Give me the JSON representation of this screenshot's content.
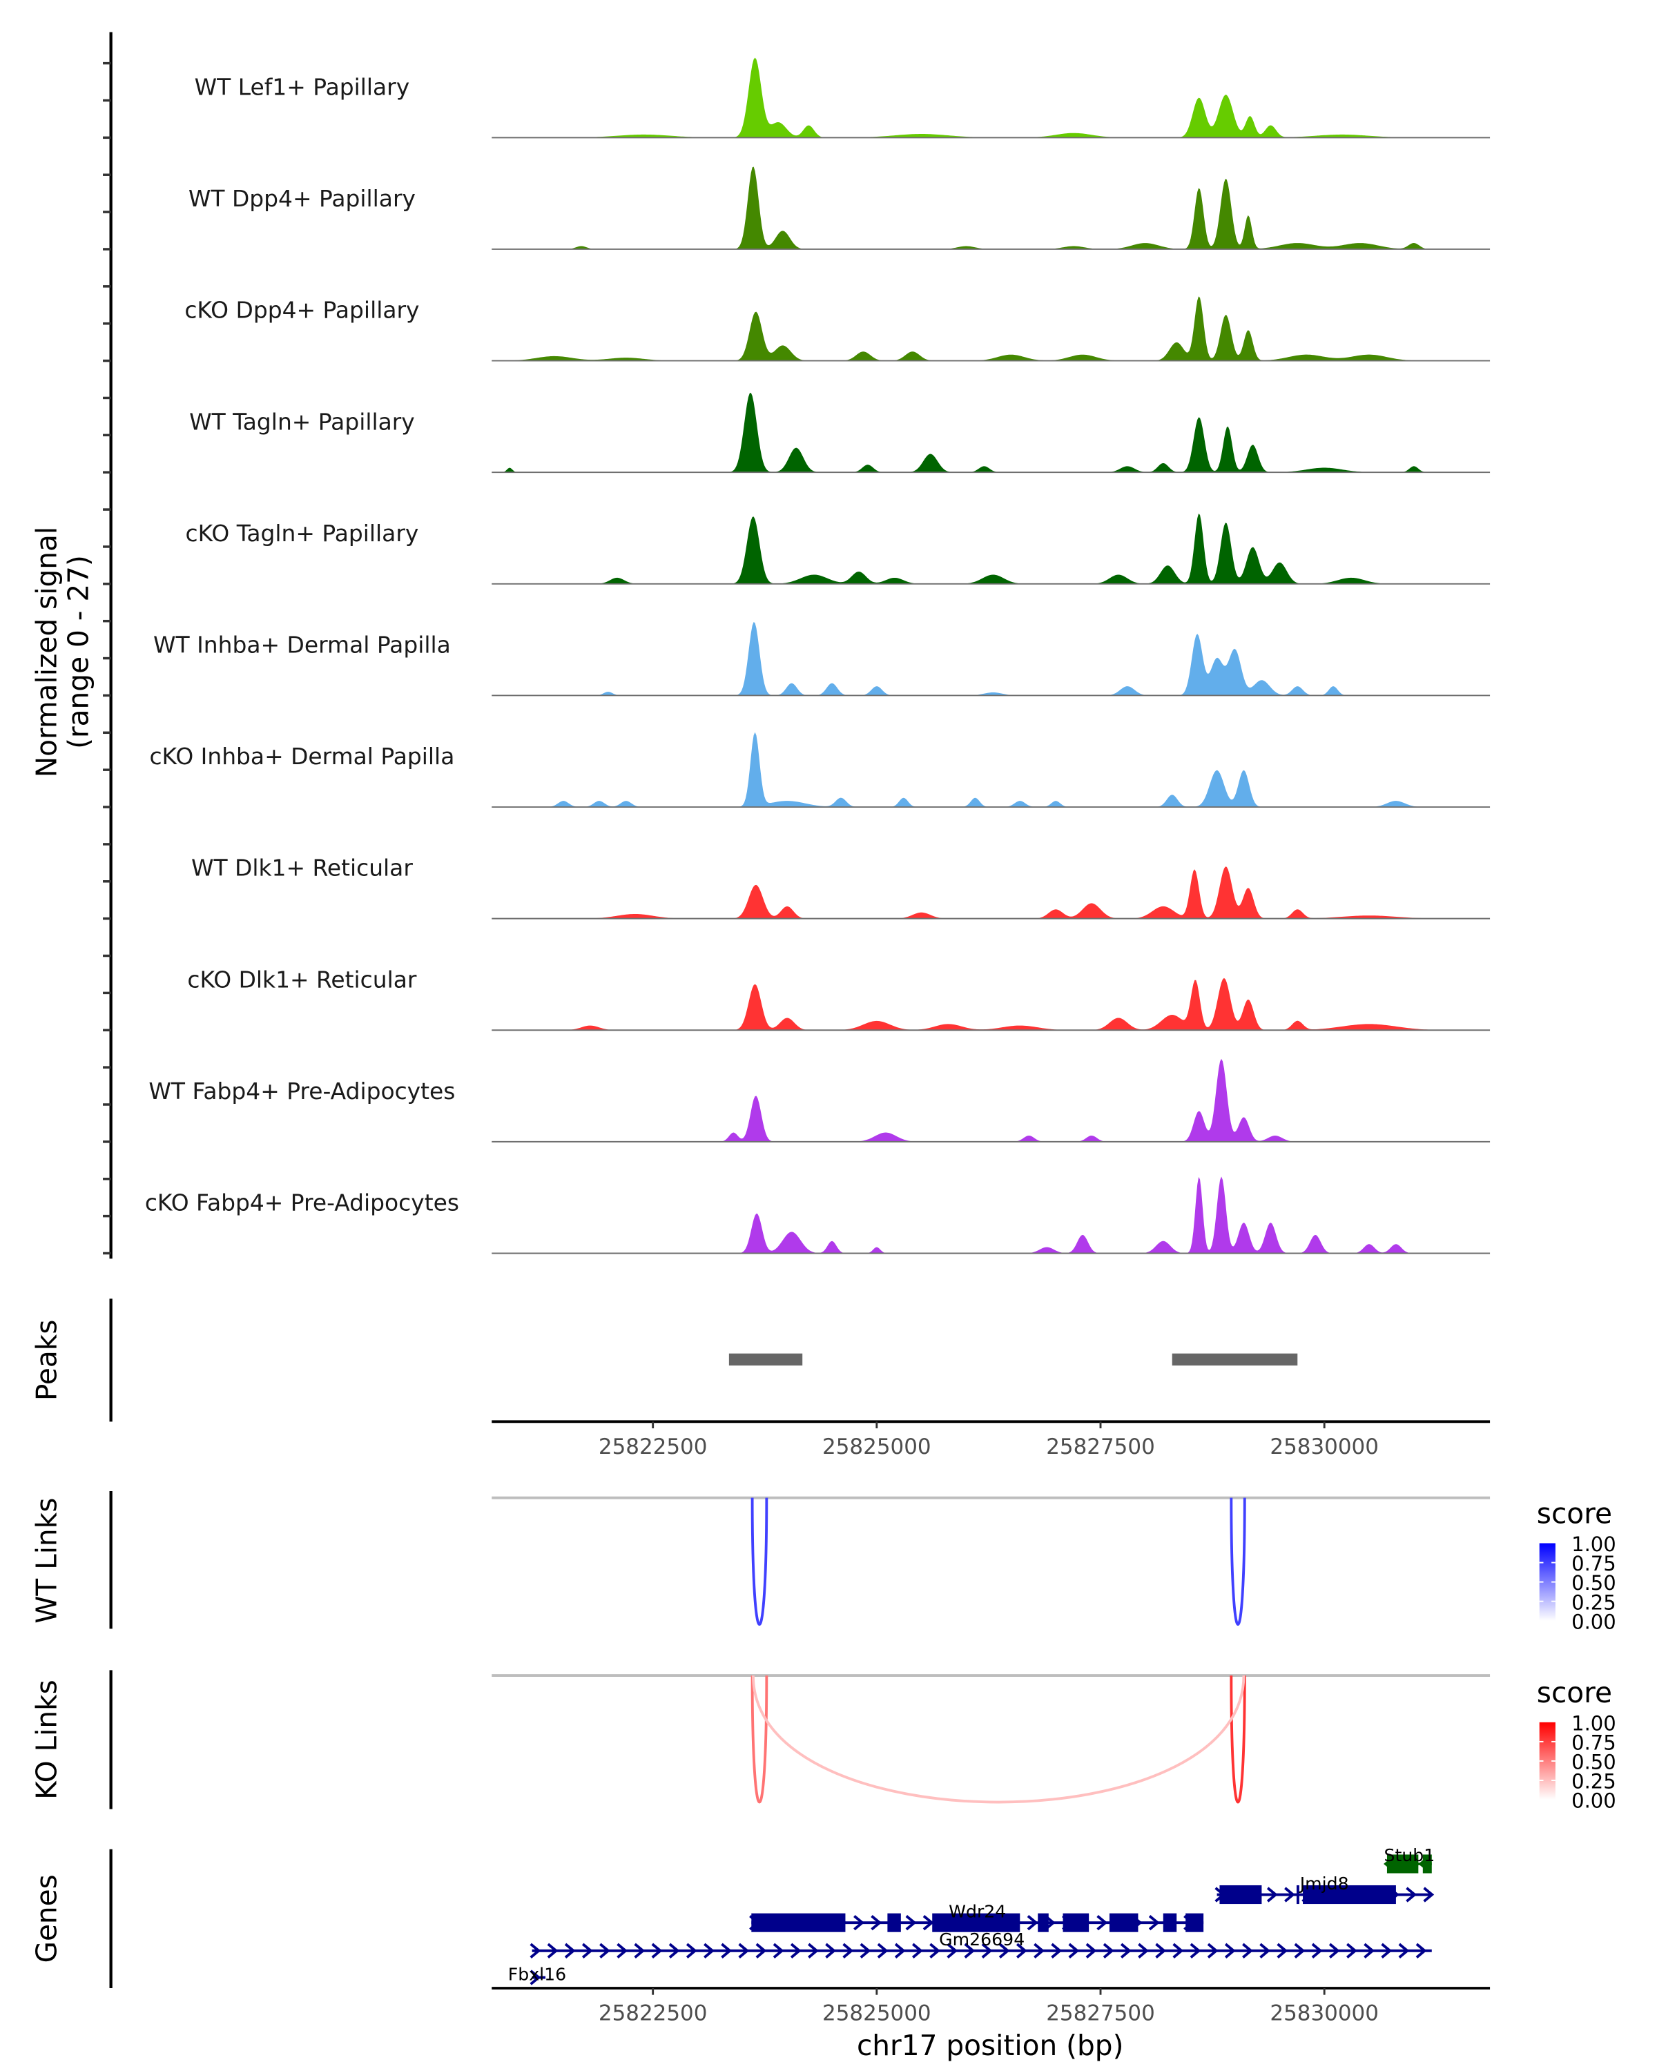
{
  "chart_data": {
    "type": "area",
    "title": "",
    "region": {
      "chrom": "chr17",
      "start": 25820700,
      "end": 25831850
    },
    "xlabel": "chr17 position (bp)",
    "x_ticks": [
      25822500,
      25825000,
      25827500,
      25830000
    ],
    "x_tick_labels": [
      "25822500",
      "25825000",
      "25827500",
      "25830000"
    ],
    "coverage": {
      "ylabel_line1": "Normalized signal",
      "ylabel_line2": "(range 0 - 27)",
      "ylim": [
        0,
        27
      ],
      "tracks": [
        {
          "name": "WT Lef1+ Papillary",
          "color": "#66CC00",
          "peaks": [
            [
              25823640,
              26,
              70
            ],
            [
              25823900,
              5,
              90
            ],
            [
              25824240,
              4,
              60
            ],
            [
              25828600,
              13,
              70
            ],
            [
              25828900,
              14,
              80
            ],
            [
              25829170,
              7,
              50
            ],
            [
              25829400,
              4,
              60
            ],
            [
              25827200,
              1.5,
              200
            ],
            [
              25825500,
              1.2,
              300
            ],
            [
              25822400,
              1.0,
              300
            ],
            [
              25830200,
              1.0,
              300
            ]
          ]
        },
        {
          "name": "WT Dpp4+ Papillary",
          "color": "#448800",
          "peaks": [
            [
              25823620,
              27,
              60
            ],
            [
              25823950,
              6,
              80
            ],
            [
              25828600,
              20,
              50
            ],
            [
              25828900,
              23,
              60
            ],
            [
              25829150,
              11,
              40
            ],
            [
              25828000,
              2,
              150
            ],
            [
              25829700,
              2,
              200
            ],
            [
              25830400,
              2,
              200
            ],
            [
              25821700,
              1,
              60
            ],
            [
              25826000,
              1,
              100
            ],
            [
              25827200,
              1,
              120
            ],
            [
              25831000,
              2,
              60
            ]
          ]
        },
        {
          "name": "cKO Dpp4+ Papillary",
          "color": "#448800",
          "peaks": [
            [
              25823650,
              16,
              70
            ],
            [
              25823950,
              5,
              90
            ],
            [
              25828600,
              21,
              50
            ],
            [
              25828900,
              15,
              60
            ],
            [
              25829150,
              10,
              50
            ],
            [
              25828350,
              6,
              80
            ],
            [
              25824850,
              3,
              80
            ],
            [
              25825400,
              3,
              80
            ],
            [
              25826500,
              2,
              150
            ],
            [
              25827300,
              2,
              150
            ],
            [
              25829800,
              2,
              200
            ],
            [
              25830500,
              2,
              200
            ],
            [
              25821400,
              1.5,
              200
            ],
            [
              25822200,
              1,
              200
            ]
          ]
        },
        {
          "name": "WT Tagln+ Papillary",
          "color": "#006400",
          "peaks": [
            [
              25823590,
              26,
              70
            ],
            [
              25824100,
              8,
              80
            ],
            [
              25825600,
              6,
              80
            ],
            [
              25824900,
              2.5,
              60
            ],
            [
              25828600,
              18,
              60
            ],
            [
              25828920,
              15,
              50
            ],
            [
              25829200,
              9,
              60
            ],
            [
              25828200,
              3,
              60
            ],
            [
              25827800,
              2,
              80
            ],
            [
              25826200,
              2,
              60
            ],
            [
              25830000,
              1.5,
              200
            ],
            [
              25831000,
              2,
              50
            ],
            [
              25820900,
              1.5,
              30
            ]
          ]
        },
        {
          "name": "cKO Tagln+ Papillary",
          "color": "#006400",
          "peaks": [
            [
              25823620,
              22,
              70
            ],
            [
              25824300,
              3,
              150
            ],
            [
              25824800,
              4,
              80
            ],
            [
              25825200,
              2,
              100
            ],
            [
              25826300,
              3,
              120
            ],
            [
              25822100,
              2,
              80
            ],
            [
              25828600,
              23,
              50
            ],
            [
              25828900,
              20,
              60
            ],
            [
              25829200,
              12,
              70
            ],
            [
              25829500,
              7,
              80
            ],
            [
              25828250,
              6,
              80
            ],
            [
              25827700,
              3,
              100
            ],
            [
              25830300,
              2,
              150
            ]
          ]
        },
        {
          "name": "WT Inhba+ Dermal Papilla",
          "color": "#62AEEB",
          "peaks": [
            [
              25823630,
              24,
              60
            ],
            [
              25824050,
              4,
              60
            ],
            [
              25824500,
              4,
              60
            ],
            [
              25825000,
              3,
              60
            ],
            [
              25828580,
              20,
              60
            ],
            [
              25828800,
              12,
              70
            ],
            [
              25829000,
              15,
              70
            ],
            [
              25829300,
              5,
              90
            ],
            [
              25829700,
              3,
              60
            ],
            [
              25830100,
              3,
              50
            ],
            [
              25827800,
              3,
              80
            ],
            [
              25822000,
              1.2,
              50
            ],
            [
              25826300,
              1,
              100
            ]
          ]
        },
        {
          "name": "cKO Inhba+ Dermal Papilla",
          "color": "#62AEEB",
          "peaks": [
            [
              25823640,
              24,
              50
            ],
            [
              25824000,
              2,
              200
            ],
            [
              25824600,
              3,
              60
            ],
            [
              25825300,
              3,
              50
            ],
            [
              25828800,
              12,
              80
            ],
            [
              25829100,
              12,
              60
            ],
            [
              25828300,
              4,
              60
            ],
            [
              25821500,
              2,
              60
            ],
            [
              25821900,
              2,
              60
            ],
            [
              25822200,
              2,
              60
            ],
            [
              25826100,
              3,
              50
            ],
            [
              25826600,
              2,
              60
            ],
            [
              25827000,
              2,
              50
            ],
            [
              25830800,
              2,
              100
            ]
          ]
        },
        {
          "name": "WT Dlk1+ Reticular",
          "color": "#FF3333",
          "peaks": [
            [
              25823650,
              11,
              80
            ],
            [
              25824000,
              4,
              70
            ],
            [
              25828550,
              16,
              50
            ],
            [
              25828900,
              17,
              70
            ],
            [
              25829150,
              10,
              60
            ],
            [
              25828200,
              4,
              120
            ],
            [
              25827400,
              5,
              100
            ],
            [
              25827000,
              3,
              80
            ],
            [
              25829700,
              3,
              60
            ],
            [
              25825500,
              2,
              100
            ],
            [
              25822300,
              1.5,
              200
            ],
            [
              25830500,
              1,
              300
            ]
          ]
        },
        {
          "name": "cKO Dlk1+ Reticular",
          "color": "#FF3333",
          "peaks": [
            [
              25823640,
              15,
              70
            ],
            [
              25824000,
              4,
              80
            ],
            [
              25828560,
              16,
              50
            ],
            [
              25828880,
              17,
              70
            ],
            [
              25829150,
              10,
              60
            ],
            [
              25828300,
              5,
              120
            ],
            [
              25827700,
              4,
              100
            ],
            [
              25829700,
              3,
              60
            ],
            [
              25825000,
              3,
              150
            ],
            [
              25825800,
              2,
              150
            ],
            [
              25826600,
              1.5,
              200
            ],
            [
              25830500,
              2,
              300
            ],
            [
              25821800,
              1.5,
              100
            ]
          ]
        },
        {
          "name": "WT Fabp4+ Pre-Adipocytes",
          "color": "#B03AEB",
          "peaks": [
            [
              25823650,
              15,
              60
            ],
            [
              25823400,
              3,
              50
            ],
            [
              25828850,
              27,
              60
            ],
            [
              25828600,
              10,
              60
            ],
            [
              25829100,
              8,
              60
            ],
            [
              25825100,
              3,
              120
            ],
            [
              25826700,
              2,
              60
            ],
            [
              25827400,
              2,
              60
            ],
            [
              25829450,
              2,
              80
            ]
          ]
        },
        {
          "name": "cKO Fabp4+ Pre-Adipocytes",
          "color": "#B03AEB",
          "peaks": [
            [
              25823660,
              13,
              60
            ],
            [
              25824050,
              7,
              100
            ],
            [
              25824500,
              4,
              50
            ],
            [
              25825000,
              2,
              40
            ],
            [
              25828600,
              25,
              40
            ],
            [
              25828850,
              25,
              50
            ],
            [
              25829100,
              10,
              60
            ],
            [
              25829400,
              10,
              60
            ],
            [
              25828200,
              4,
              80
            ],
            [
              25827300,
              6,
              60
            ],
            [
              25826900,
              2,
              80
            ],
            [
              25829900,
              6,
              60
            ],
            [
              25830500,
              3,
              60
            ],
            [
              25830800,
              3,
              60
            ]
          ]
        }
      ]
    },
    "peaks_track": {
      "label": "Peaks",
      "color": "#666666",
      "ranges": [
        [
          25823350,
          25824170
        ],
        [
          25828300,
          25829700
        ]
      ]
    },
    "wt_links": {
      "label": "WT Links",
      "links": [
        {
          "start": 25823610,
          "end": 25823770,
          "score": 0.75
        },
        {
          "start": 25828960,
          "end": 25829110,
          "score": 0.75
        }
      ],
      "legend": {
        "title": "score",
        "low_color": "#FFFFFF",
        "high_color": "#0000FF",
        "ticks": [
          "1.00",
          "0.75",
          "0.50",
          "0.25",
          "0.00"
        ]
      }
    },
    "ko_links": {
      "label": "KO Links",
      "links": [
        {
          "start": 25823610,
          "end": 25823770,
          "score": 0.55
        },
        {
          "start": 25828960,
          "end": 25829110,
          "score": 0.8
        },
        {
          "start": 25823620,
          "end": 25829100,
          "score": 0.2
        }
      ],
      "legend": {
        "title": "score",
        "low_color": "#FFFFFF",
        "high_color": "#FF0000",
        "ticks": [
          "1.00",
          "0.75",
          "0.50",
          "0.25",
          "0.00"
        ]
      }
    },
    "genes_track": {
      "label": "Genes",
      "genes": [
        {
          "name": "Stub1",
          "strand": "-",
          "row": 0,
          "color": "#006400",
          "start": 25830700,
          "end": 25831200,
          "exons": [
            [
              25830700,
              25831050
            ],
            [
              25831100,
              25831200
            ]
          ]
        },
        {
          "name": "Jmjd8",
          "strand": "+",
          "row": 1,
          "color": "#00008B",
          "start": 25828800,
          "end": 25831200,
          "exons": [
            [
              25828830,
              25829300
            ],
            [
              25829690,
              25829720
            ],
            [
              25829760,
              25830800
            ]
          ]
        },
        {
          "name": "Wdr24",
          "strand": "+",
          "row": 2,
          "color": "#00008B",
          "start": 25823600,
          "end": 25828650,
          "exons": [
            [
              25823600,
              25824650
            ],
            [
              25825120,
              25825270
            ],
            [
              25825620,
              25826600
            ],
            [
              25826800,
              25826920
            ],
            [
              25827080,
              25827370
            ],
            [
              25827600,
              25827920
            ],
            [
              25828200,
              25828350
            ],
            [
              25828450,
              25828650
            ]
          ]
        },
        {
          "name": "Gm26694",
          "strand": "+",
          "row": 3,
          "color": "#00008B",
          "start": 25821150,
          "end": 25831200,
          "exons": []
        },
        {
          "name": "Fbxl16",
          "strand": "+",
          "row": 4,
          "color": "#00008B",
          "start": 25821150,
          "end": 25821300,
          "exons": []
        }
      ]
    }
  }
}
